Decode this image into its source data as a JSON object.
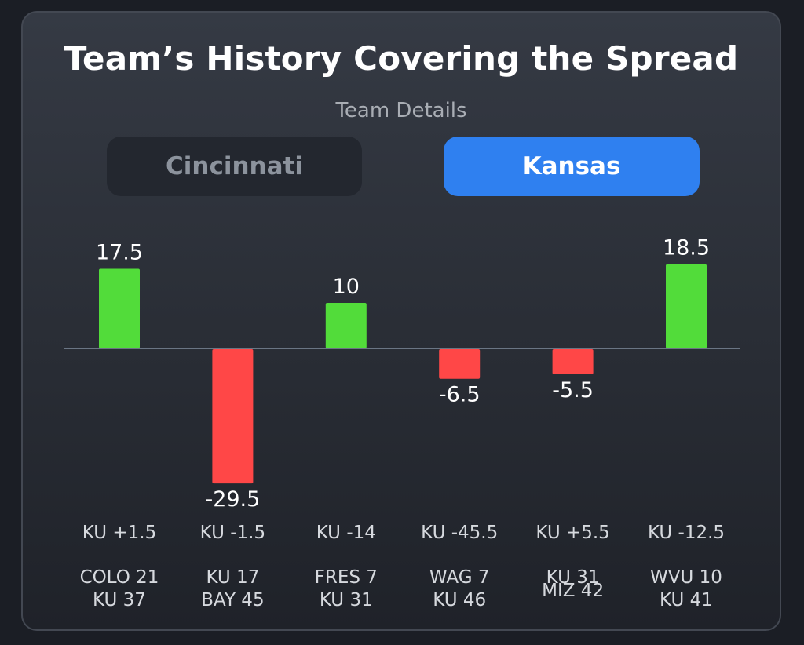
{
  "header": {
    "title": "Team’s History Covering the Spread",
    "subtitle": "Team Details"
  },
  "team_toggle": {
    "options": [
      "Cincinnati",
      "Kansas"
    ],
    "selected": "Kansas"
  },
  "colors": {
    "positive": "#52dc3a",
    "negative": "#ff4747",
    "baseline": "#6a7584",
    "active_button": "#2f80f0"
  },
  "chart_data": {
    "type": "bar",
    "title": "",
    "xlabel": "",
    "ylabel": "",
    "categories": [
      "KU +1.5",
      "KU -1.5",
      "KU -14",
      "KU -45.5",
      "KU +5.5",
      "KU -12.5"
    ],
    "values": [
      17.5,
      -29.5,
      10,
      -6.5,
      -5.5,
      18.5
    ],
    "value_labels": [
      "17.5",
      "-29.5",
      "10",
      "-6.5",
      "-5.5",
      "18.5"
    ],
    "scores": [
      [
        "COLO 21",
        "KU 37"
      ],
      [
        "KU 17",
        "BAY 45"
      ],
      [
        "FRES 7",
        "KU 31"
      ],
      [
        "WAG 7",
        "KU 46"
      ],
      [
        "KU 31",
        "MIZ 42"
      ],
      [
        "WVU 10",
        "KU 41"
      ]
    ],
    "ylim": [
      -29.5,
      18.5
    ],
    "grid": false,
    "legend": "none"
  }
}
